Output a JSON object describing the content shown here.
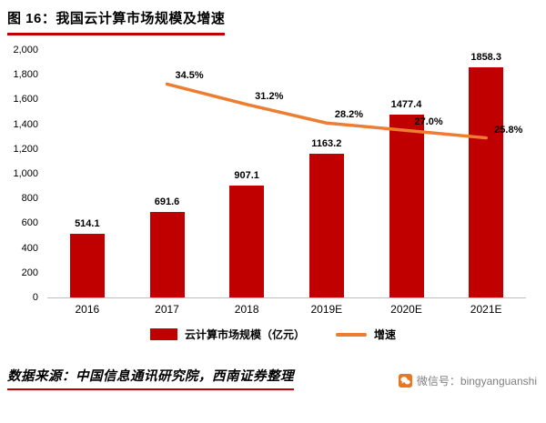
{
  "header": {
    "title": "图 16：我国云计算市场规模及增速"
  },
  "chart_data": {
    "type": "bar",
    "title": "我国云计算市场规模及增速",
    "categories": [
      "2016",
      "2017",
      "2018",
      "2019E",
      "2020E",
      "2021E"
    ],
    "series": [
      {
        "name": "云计算市场规模（亿元）",
        "type": "bar",
        "color": "#C00000",
        "values": [
          514.1,
          691.6,
          907.1,
          1163.2,
          1477.4,
          1858.3
        ]
      },
      {
        "name": "增速",
        "type": "line",
        "color": "#ED7D31",
        "unit": "%",
        "values": [
          null,
          34.5,
          31.2,
          28.2,
          27.0,
          25.8
        ]
      }
    ],
    "labels": {
      "bar_labels": [
        "514.1",
        "691.6",
        "907.1",
        "1163.2",
        "1477.4",
        "1858.3"
      ],
      "line_labels": [
        "34.5%",
        "31.2%",
        "28.2%",
        "27.0%",
        "25.8%"
      ]
    },
    "left_axis": {
      "min": 0,
      "max": 2000,
      "step": 200,
      "tick_labels": [
        "2,000",
        "1,800",
        "1,600",
        "1,400",
        "1,200",
        "1,000",
        "800",
        "600",
        "400",
        "200",
        "0"
      ]
    },
    "right_axis": {
      "min": 0,
      "max": 40
    },
    "grid": false,
    "legend_position": "bottom"
  },
  "legend": {
    "bar_label": "云计算市场规模（亿元）",
    "line_label": "增速"
  },
  "footer": {
    "source": "数据来源：中国信息通讯研究院，西南证券整理",
    "wechat": "微信号：bingyanguanshi"
  },
  "colors": {
    "bar": "#C00000",
    "line": "#ED7D31",
    "accent_rule": "#C00000",
    "wechat_icon": "#E87722",
    "axis_line": "#BFBFBF"
  }
}
